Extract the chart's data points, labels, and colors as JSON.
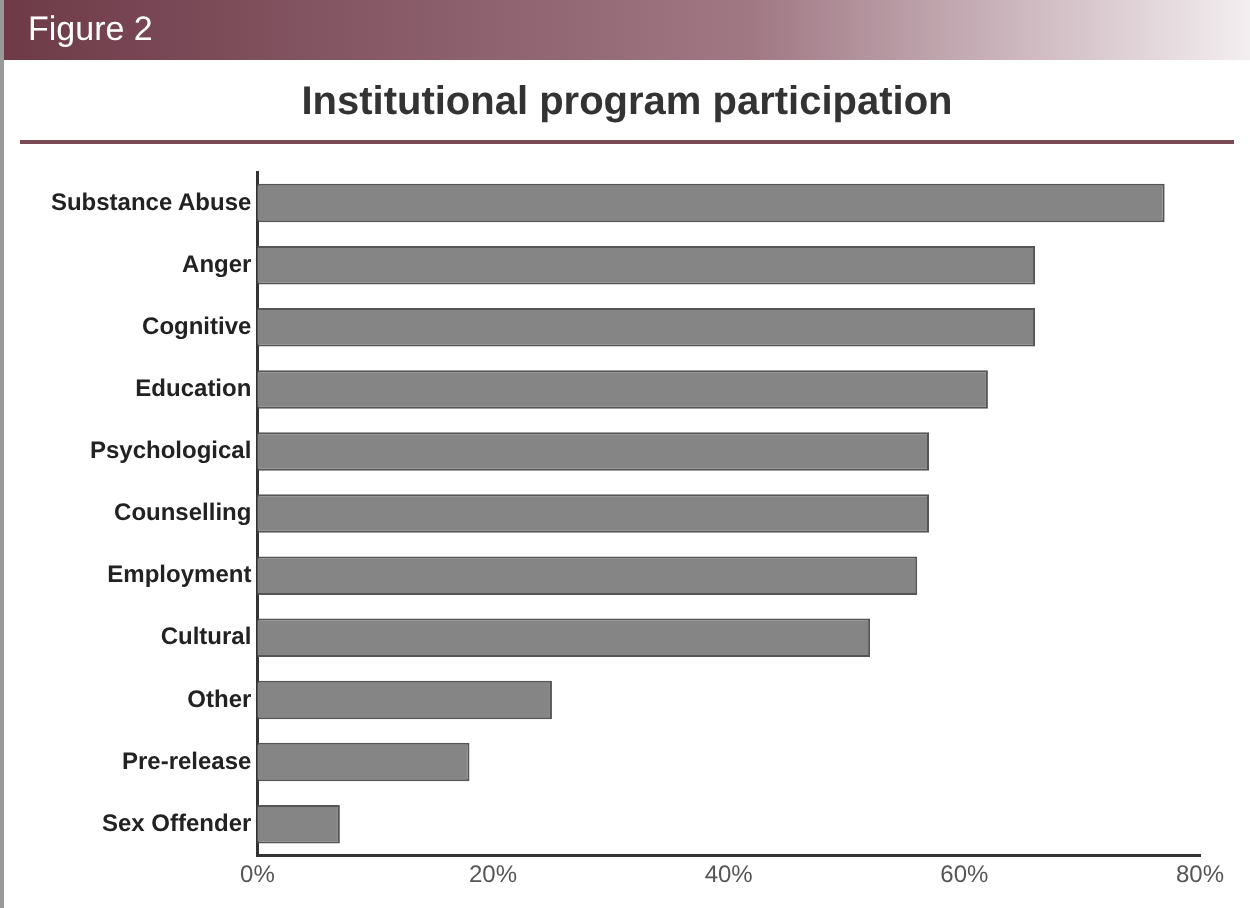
{
  "chart_data": {
    "type": "bar",
    "orientation": "horizontal",
    "title": "Institutional program participation",
    "annotations": [
      "Figure 2"
    ],
    "categories": [
      "Substance Abuse",
      "Anger",
      "Cognitive",
      "Education",
      "Psychological",
      "Counselling",
      "Employment",
      "Cultural",
      "Other",
      "Pre-release",
      "Sex Offender"
    ],
    "values": [
      77,
      66,
      66,
      62,
      57,
      57,
      56,
      52,
      25,
      18,
      7
    ],
    "color": "#858585",
    "xlim": [
      0,
      80
    ],
    "xticks": [
      {
        "value": 0,
        "label": "0%"
      },
      {
        "value": 20,
        "label": "20%"
      },
      {
        "value": 40,
        "label": "40%"
      },
      {
        "value": 60,
        "label": "60%"
      },
      {
        "value": 80,
        "label": "80%"
      }
    ],
    "grid": false,
    "legend": false
  }
}
